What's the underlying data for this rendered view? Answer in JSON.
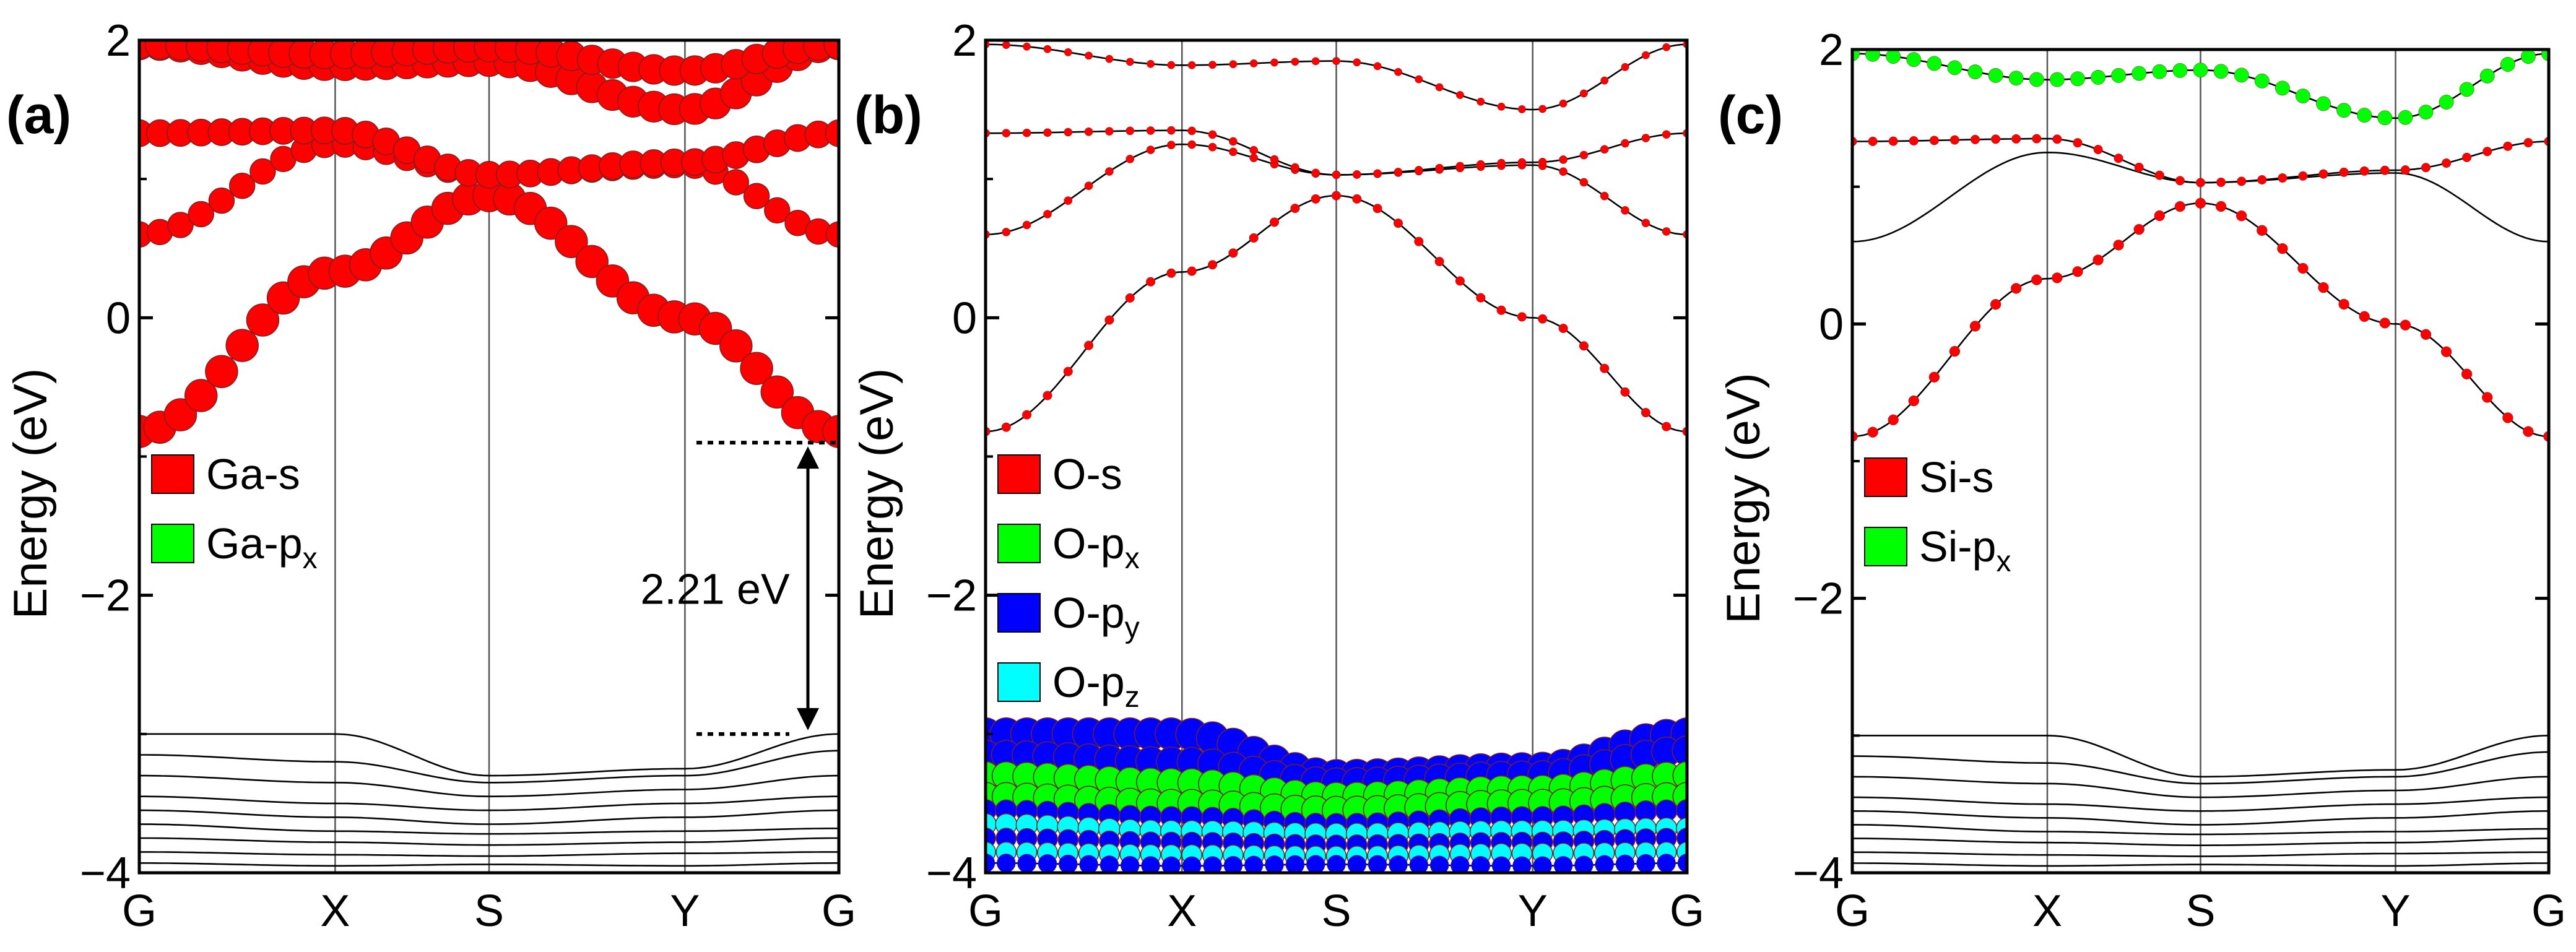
{
  "chart_data": [
    {
      "id": "a",
      "type": "line",
      "panel_label": "(a)",
      "ylabel": "Energy (eV)",
      "ylim": [
        -4,
        2
      ],
      "yticks": [
        -4,
        -2,
        0,
        2
      ],
      "ytick_labels": [
        "−4",
        "−2",
        "0",
        "2"
      ],
      "kpoints": [
        "G",
        "X",
        "S",
        "Y",
        "G"
      ],
      "kpos": [
        0,
        0.28,
        0.5,
        0.78,
        1.0
      ],
      "legend": [
        {
          "label": "Ga-s",
          "sup": "",
          "sub": "",
          "color": "#ff0000"
        },
        {
          "label": "Ga-p",
          "sub": "x",
          "color": "#00ff00"
        }
      ],
      "annotation": {
        "text": "2.21 eV",
        "from": -3.0,
        "to": -0.9
      },
      "bands": [
        {
          "k": [
            0,
            0.28,
            0.5,
            0.78,
            1.0
          ],
          "e": [
            -0.82,
            0.33,
            0.88,
            0.0,
            -0.82
          ],
          "weight": 1.0
        },
        {
          "k": [
            0,
            0.28,
            0.5,
            0.78,
            1.0
          ],
          "e": [
            0.6,
            1.25,
            1.03,
            1.1,
            0.6
          ],
          "weight": 0.75
        },
        {
          "k": [
            0,
            0.28,
            0.5,
            0.78,
            1.0
          ],
          "e": [
            1.33,
            1.35,
            1.03,
            1.12,
            1.33
          ],
          "weight": 0.8
        },
        {
          "k": [
            0,
            0.28,
            0.5,
            0.78,
            1.0
          ],
          "e": [
            1.97,
            1.82,
            1.85,
            1.5,
            1.97
          ],
          "weight": 0.95
        },
        {
          "k": [
            0,
            0.28,
            0.5,
            0.78,
            1.0
          ],
          "e": [
            1.97,
            1.9,
            1.95,
            1.78,
            1.97
          ],
          "weight": 0.9
        },
        {
          "k": [
            0,
            0.28,
            0.5,
            0.78,
            1.0
          ],
          "e": [
            -3.0,
            -3.0,
            -3.3,
            -3.25,
            -3.0
          ],
          "weight": 0
        },
        {
          "k": [
            0,
            0.28,
            0.5,
            0.78,
            1.0
          ],
          "e": [
            -3.15,
            -3.2,
            -3.35,
            -3.3,
            -3.12
          ],
          "weight": 0
        },
        {
          "k": [
            0,
            0.28,
            0.5,
            0.78,
            1.0
          ],
          "e": [
            -3.3,
            -3.35,
            -3.45,
            -3.4,
            -3.3
          ],
          "weight": 0
        },
        {
          "k": [
            0,
            0.28,
            0.5,
            0.78,
            1.0
          ],
          "e": [
            -3.45,
            -3.5,
            -3.55,
            -3.5,
            -3.45
          ],
          "weight": 0
        },
        {
          "k": [
            0,
            0.28,
            0.5,
            0.78,
            1.0
          ],
          "e": [
            -3.55,
            -3.6,
            -3.65,
            -3.6,
            -3.55
          ],
          "weight": 0
        },
        {
          "k": [
            0,
            0.28,
            0.5,
            0.78,
            1.0
          ],
          "e": [
            -3.65,
            -3.7,
            -3.72,
            -3.7,
            -3.68
          ],
          "weight": 0
        },
        {
          "k": [
            0,
            0.28,
            0.5,
            0.78,
            1.0
          ],
          "e": [
            -3.75,
            -3.78,
            -3.8,
            -3.78,
            -3.75
          ],
          "weight": 0
        },
        {
          "k": [
            0,
            0.28,
            0.5,
            0.78,
            1.0
          ],
          "e": [
            -3.85,
            -3.87,
            -3.88,
            -3.86,
            -3.85
          ],
          "weight": 0
        },
        {
          "k": [
            0,
            0.28,
            0.5,
            0.78,
            1.0
          ],
          "e": [
            -3.93,
            -3.95,
            -3.94,
            -3.95,
            -3.93
          ],
          "weight": 0
        }
      ]
    },
    {
      "id": "b",
      "type": "line",
      "panel_label": "(b)",
      "ylabel": "Energy (eV)",
      "ylim": [
        -4,
        2
      ],
      "yticks": [
        -4,
        -2,
        0,
        2
      ],
      "ytick_labels": [
        "−4",
        "−2",
        "0",
        "2"
      ],
      "kpoints": [
        "G",
        "X",
        "S",
        "Y",
        "G"
      ],
      "kpos": [
        0,
        0.28,
        0.5,
        0.78,
        1.0
      ],
      "legend": [
        {
          "label": "O-s",
          "sub": "",
          "color": "#ff0000"
        },
        {
          "label": "O-p",
          "sub": "x",
          "color": "#00ff00"
        },
        {
          "label": "O-p",
          "sub": "y",
          "color": "#0000ff"
        },
        {
          "label": "O-p",
          "sub": "z",
          "color": "#00ffff"
        }
      ],
      "bands": [
        {
          "k": [
            0,
            0.28,
            0.5,
            0.78,
            1.0
          ],
          "e": [
            -0.82,
            0.33,
            0.88,
            0.0,
            -0.82
          ],
          "weight": 0.15
        },
        {
          "k": [
            0,
            0.28,
            0.5,
            0.78,
            1.0
          ],
          "e": [
            0.6,
            1.25,
            1.03,
            1.1,
            0.6
          ],
          "weight": 0.12
        },
        {
          "k": [
            0,
            0.28,
            0.5,
            0.78,
            1.0
          ],
          "e": [
            1.33,
            1.35,
            1.03,
            1.12,
            1.33
          ],
          "weight": 0.12
        },
        {
          "k": [
            0,
            0.28,
            0.5,
            0.78,
            1.0
          ],
          "e": [
            1.97,
            1.82,
            1.85,
            1.5,
            1.97
          ],
          "weight": 0.1
        },
        {
          "k": [
            0,
            0.28,
            0.5,
            0.78,
            1.0
          ],
          "e": [
            -3.0,
            -3.0,
            -3.3,
            -3.25,
            -3.0
          ],
          "weight": 1.0,
          "color": "#0000ff"
        },
        {
          "k": [
            0,
            0.28,
            0.5,
            0.78,
            1.0
          ],
          "e": [
            -3.15,
            -3.2,
            -3.35,
            -3.3,
            -3.12
          ],
          "weight": 0.9,
          "color": "#0000ff"
        },
        {
          "k": [
            0,
            0.28,
            0.5,
            0.78,
            1.0
          ],
          "e": [
            -3.3,
            -3.35,
            -3.45,
            -3.4,
            -3.3
          ],
          "weight": 0.85,
          "color": "#00ff00"
        },
        {
          "k": [
            0,
            0.28,
            0.5,
            0.78,
            1.0
          ],
          "e": [
            -3.45,
            -3.5,
            -3.55,
            -3.5,
            -3.45
          ],
          "weight": 0.85,
          "color": "#00ff00"
        },
        {
          "k": [
            0,
            0.28,
            0.5,
            0.78,
            1.0
          ],
          "e": [
            -3.55,
            -3.6,
            -3.65,
            -3.6,
            -3.55
          ],
          "weight": 0.6,
          "color": "#0000ff"
        },
        {
          "k": [
            0,
            0.28,
            0.5,
            0.78,
            1.0
          ],
          "e": [
            -3.65,
            -3.7,
            -3.72,
            -3.7,
            -3.68
          ],
          "weight": 0.6,
          "color": "#00ffff"
        },
        {
          "k": [
            0,
            0.28,
            0.5,
            0.78,
            1.0
          ],
          "e": [
            -3.75,
            -3.78,
            -3.8,
            -3.78,
            -3.75
          ],
          "weight": 0.55,
          "color": "#0000ff"
        },
        {
          "k": [
            0,
            0.28,
            0.5,
            0.78,
            1.0
          ],
          "e": [
            -3.85,
            -3.87,
            -3.88,
            -3.86,
            -3.85
          ],
          "weight": 0.55,
          "color": "#00ffff"
        },
        {
          "k": [
            0,
            0.28,
            0.5,
            0.78,
            1.0
          ],
          "e": [
            -3.93,
            -3.95,
            -3.94,
            -3.95,
            -3.93
          ],
          "weight": 0.5,
          "color": "#0000ff"
        }
      ]
    },
    {
      "id": "c",
      "type": "line",
      "panel_label": "(c)",
      "ylabel": "Energy (eV)",
      "ylim": [
        -4,
        2
      ],
      "yticks": [
        -4,
        -2,
        0,
        2
      ],
      "ytick_labels": [
        "−4",
        "−2",
        "0",
        "2"
      ],
      "kpoints": [
        "G",
        "X",
        "S",
        "Y",
        "G"
      ],
      "kpos": [
        0,
        0.28,
        0.5,
        0.78,
        1.0
      ],
      "legend": [
        {
          "label": "Si-s",
          "sub": "",
          "color": "#ff0000"
        },
        {
          "label": "Si-p",
          "sub": "x",
          "color": "#00ff00"
        }
      ],
      "bands": [
        {
          "k": [
            0,
            0.28,
            0.5,
            0.78,
            1.0
          ],
          "e": [
            -0.82,
            0.33,
            0.88,
            0.0,
            -0.82
          ],
          "weight": 0.2
        },
        {
          "k": [
            0,
            0.28,
            0.5,
            0.78,
            1.0
          ],
          "e": [
            0.6,
            1.25,
            1.03,
            1.1,
            0.6
          ],
          "weight": 0
        },
        {
          "k": [
            0,
            0.28,
            0.5,
            0.78,
            1.0
          ],
          "e": [
            1.33,
            1.35,
            1.03,
            1.12,
            1.33
          ],
          "weight": 0.15
        },
        {
          "k": [
            0,
            0.28,
            0.5,
            0.78,
            1.0
          ],
          "e": [
            1.97,
            1.78,
            1.85,
            1.5,
            1.97
          ],
          "weight": 0.35,
          "color": "#00ff00"
        },
        {
          "k": [
            0,
            0.28,
            0.5,
            0.78,
            1.0
          ],
          "e": [
            -3.0,
            -3.0,
            -3.3,
            -3.25,
            -3.0
          ],
          "weight": 0
        },
        {
          "k": [
            0,
            0.28,
            0.5,
            0.78,
            1.0
          ],
          "e": [
            -3.15,
            -3.2,
            -3.35,
            -3.3,
            -3.12
          ],
          "weight": 0
        },
        {
          "k": [
            0,
            0.28,
            0.5,
            0.78,
            1.0
          ],
          "e": [
            -3.3,
            -3.35,
            -3.45,
            -3.4,
            -3.3
          ],
          "weight": 0
        },
        {
          "k": [
            0,
            0.28,
            0.5,
            0.78,
            1.0
          ],
          "e": [
            -3.45,
            -3.5,
            -3.55,
            -3.5,
            -3.45
          ],
          "weight": 0
        },
        {
          "k": [
            0,
            0.28,
            0.5,
            0.78,
            1.0
          ],
          "e": [
            -3.55,
            -3.6,
            -3.65,
            -3.6,
            -3.55
          ],
          "weight": 0
        },
        {
          "k": [
            0,
            0.28,
            0.5,
            0.78,
            1.0
          ],
          "e": [
            -3.65,
            -3.7,
            -3.72,
            -3.7,
            -3.68
          ],
          "weight": 0
        },
        {
          "k": [
            0,
            0.28,
            0.5,
            0.78,
            1.0
          ],
          "e": [
            -3.75,
            -3.78,
            -3.8,
            -3.78,
            -3.75
          ],
          "weight": 0
        },
        {
          "k": [
            0,
            0.28,
            0.5,
            0.78,
            1.0
          ],
          "e": [
            -3.85,
            -3.87,
            -3.88,
            -3.86,
            -3.85
          ],
          "weight": 0
        },
        {
          "k": [
            0,
            0.28,
            0.5,
            0.78,
            1.0
          ],
          "e": [
            -3.93,
            -3.95,
            -3.94,
            -3.95,
            -3.93
          ],
          "weight": 0
        }
      ]
    }
  ]
}
